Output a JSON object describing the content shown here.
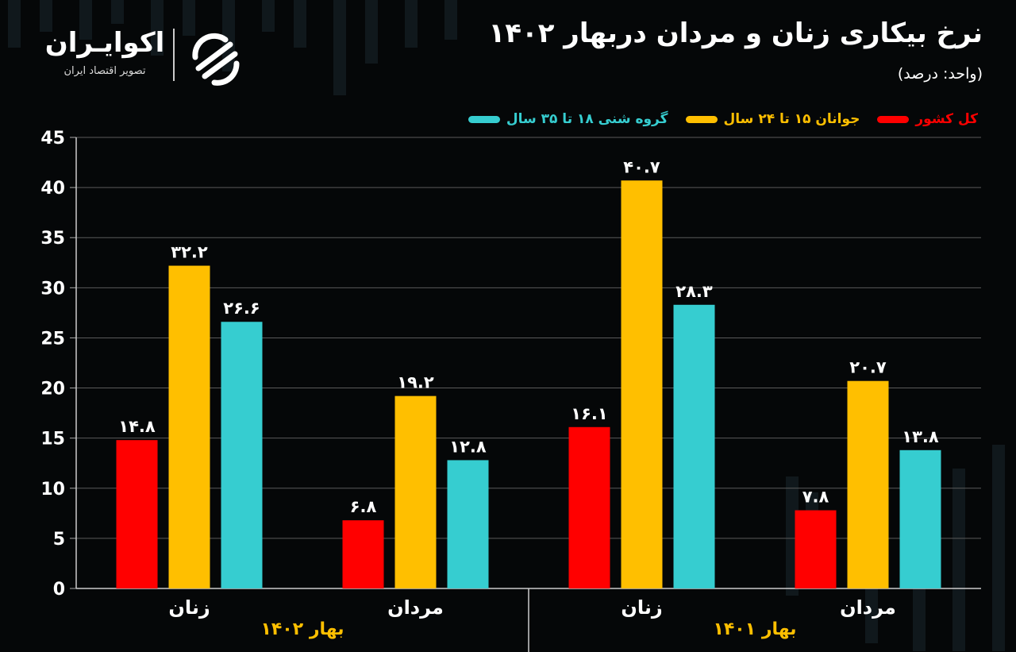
{
  "header": {
    "title": "نرخ بیکاری زنان و مردان دربهار ۱۴۰۲",
    "unit": "(واحد: درصد)"
  },
  "logo": {
    "name": "اکوایـران",
    "tagline": "تصویر اقتصاد ایران",
    "icon": "ekoiran-logo-icon"
  },
  "colors": {
    "background": "#050708",
    "national": "#ff0000",
    "youth": "#ffbf00",
    "educated": "#36cdd0",
    "grid": "#5a5a5a"
  },
  "chart_data": {
    "type": "bar",
    "title": "نرخ بیکاری زنان و مردان دربهار ۱۴۰۲",
    "ylabel": "",
    "xlabel": "",
    "ylim": [
      0,
      45
    ],
    "yticks": [
      "0",
      "5",
      "10",
      "15",
      "20",
      "25",
      "30",
      "35",
      "40",
      "45"
    ],
    "grid": true,
    "legend_position": "top-right",
    "groups": [
      {
        "label": "بهار ۱۴۰۲",
        "categories": [
          "زنان",
          "مردان"
        ]
      },
      {
        "label": "بهار ۱۴۰۱",
        "categories": [
          "زنان",
          "مردان"
        ]
      }
    ],
    "categories": [
      "زنان",
      "مردان",
      "زنان",
      "مردان"
    ],
    "series": [
      {
        "name": "کل کشور",
        "color": "#ff0000",
        "values": [
          14.8,
          6.8,
          16.1,
          7.8
        ],
        "labels": [
          "۱۴.۸",
          "۶.۸",
          "۱۶.۱",
          "۷.۸"
        ]
      },
      {
        "name": "جوانان ۱۵ تا ۲۴ سال",
        "color": "#ffbf00",
        "values": [
          32.2,
          19.2,
          40.7,
          20.7
        ],
        "labels": [
          "۳۲.۲",
          "۱۹.۲",
          "۴۰.۷",
          "۲۰.۷"
        ]
      },
      {
        "name": "گروه شنی ۱۸ تا ۳۵ سال",
        "color": "#36cdd0",
        "values": [
          26.6,
          12.8,
          28.3,
          13.8
        ],
        "labels": [
          "۲۶.۶",
          "۱۲.۸",
          "۲۸.۳",
          "۱۳.۸"
        ]
      }
    ]
  }
}
